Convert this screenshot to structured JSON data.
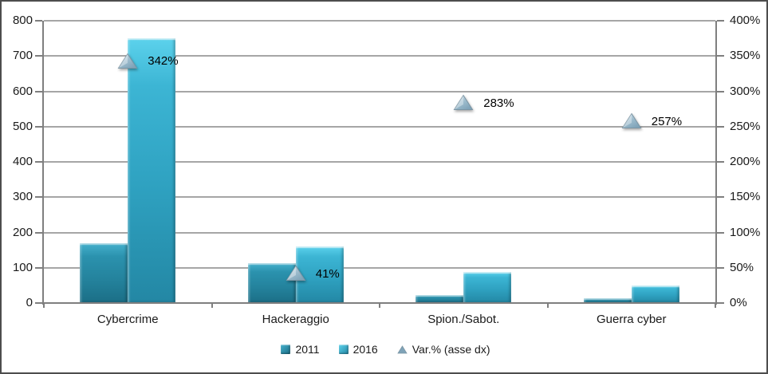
{
  "chart_data": {
    "type": "combo-bar-scatter",
    "title": "",
    "categories": [
      "Cybercrime",
      "Hackeraggio",
      "Spion./Sabot.",
      "Guerra cyber"
    ],
    "series": [
      {
        "name": "2011",
        "type": "bar",
        "axis": "left",
        "values": [
          170,
          114,
          23,
          14
        ]
      },
      {
        "name": "2016",
        "type": "bar",
        "axis": "left",
        "values": [
          751,
          161,
          88,
          50
        ]
      },
      {
        "name": "Var.% (asse dx)",
        "type": "scatter",
        "marker": "triangle",
        "axis": "right",
        "values": [
          342,
          41,
          283,
          257
        ],
        "point_labels": [
          "342%",
          "41%",
          "283%",
          "257%"
        ]
      }
    ],
    "left_axis": {
      "min": 0,
      "max": 800,
      "step": 100,
      "tick_labels_top_down": [
        "800",
        "700",
        "600",
        "500",
        "400",
        "300",
        "200",
        "100",
        "0"
      ]
    },
    "right_axis": {
      "min": 0,
      "max": 400,
      "step": 50,
      "tick_labels_top_down": [
        "400%",
        "350%",
        "300%",
        "250%",
        "200%",
        "150%",
        "100%",
        "50%",
        "0%"
      ]
    },
    "grid": true,
    "legend": {
      "position": "bottom",
      "entries": [
        {
          "label": "2011",
          "marker": "square-dark"
        },
        {
          "label": "2016",
          "marker": "square-light"
        },
        {
          "label": "Var.% (asse dx)",
          "marker": "triangle"
        }
      ]
    }
  },
  "colors": {
    "bar_2011_top": "#45b1cd",
    "bar_2011_bottom": "#1b6e86",
    "bar_2016_top": "#5cd2ec",
    "bar_2016_bottom": "#2387a4",
    "marker_light": "#d6e4ed",
    "marker_mid": "#9dbccd",
    "marker_dark": "#7fa3b8",
    "marker_edge": "#7b95a4",
    "gridline": "#a6a6a6",
    "axis": "#7f7f7f",
    "text": "#1a1a1a",
    "frame": "#4d4d4d",
    "background": "#ffffff"
  }
}
